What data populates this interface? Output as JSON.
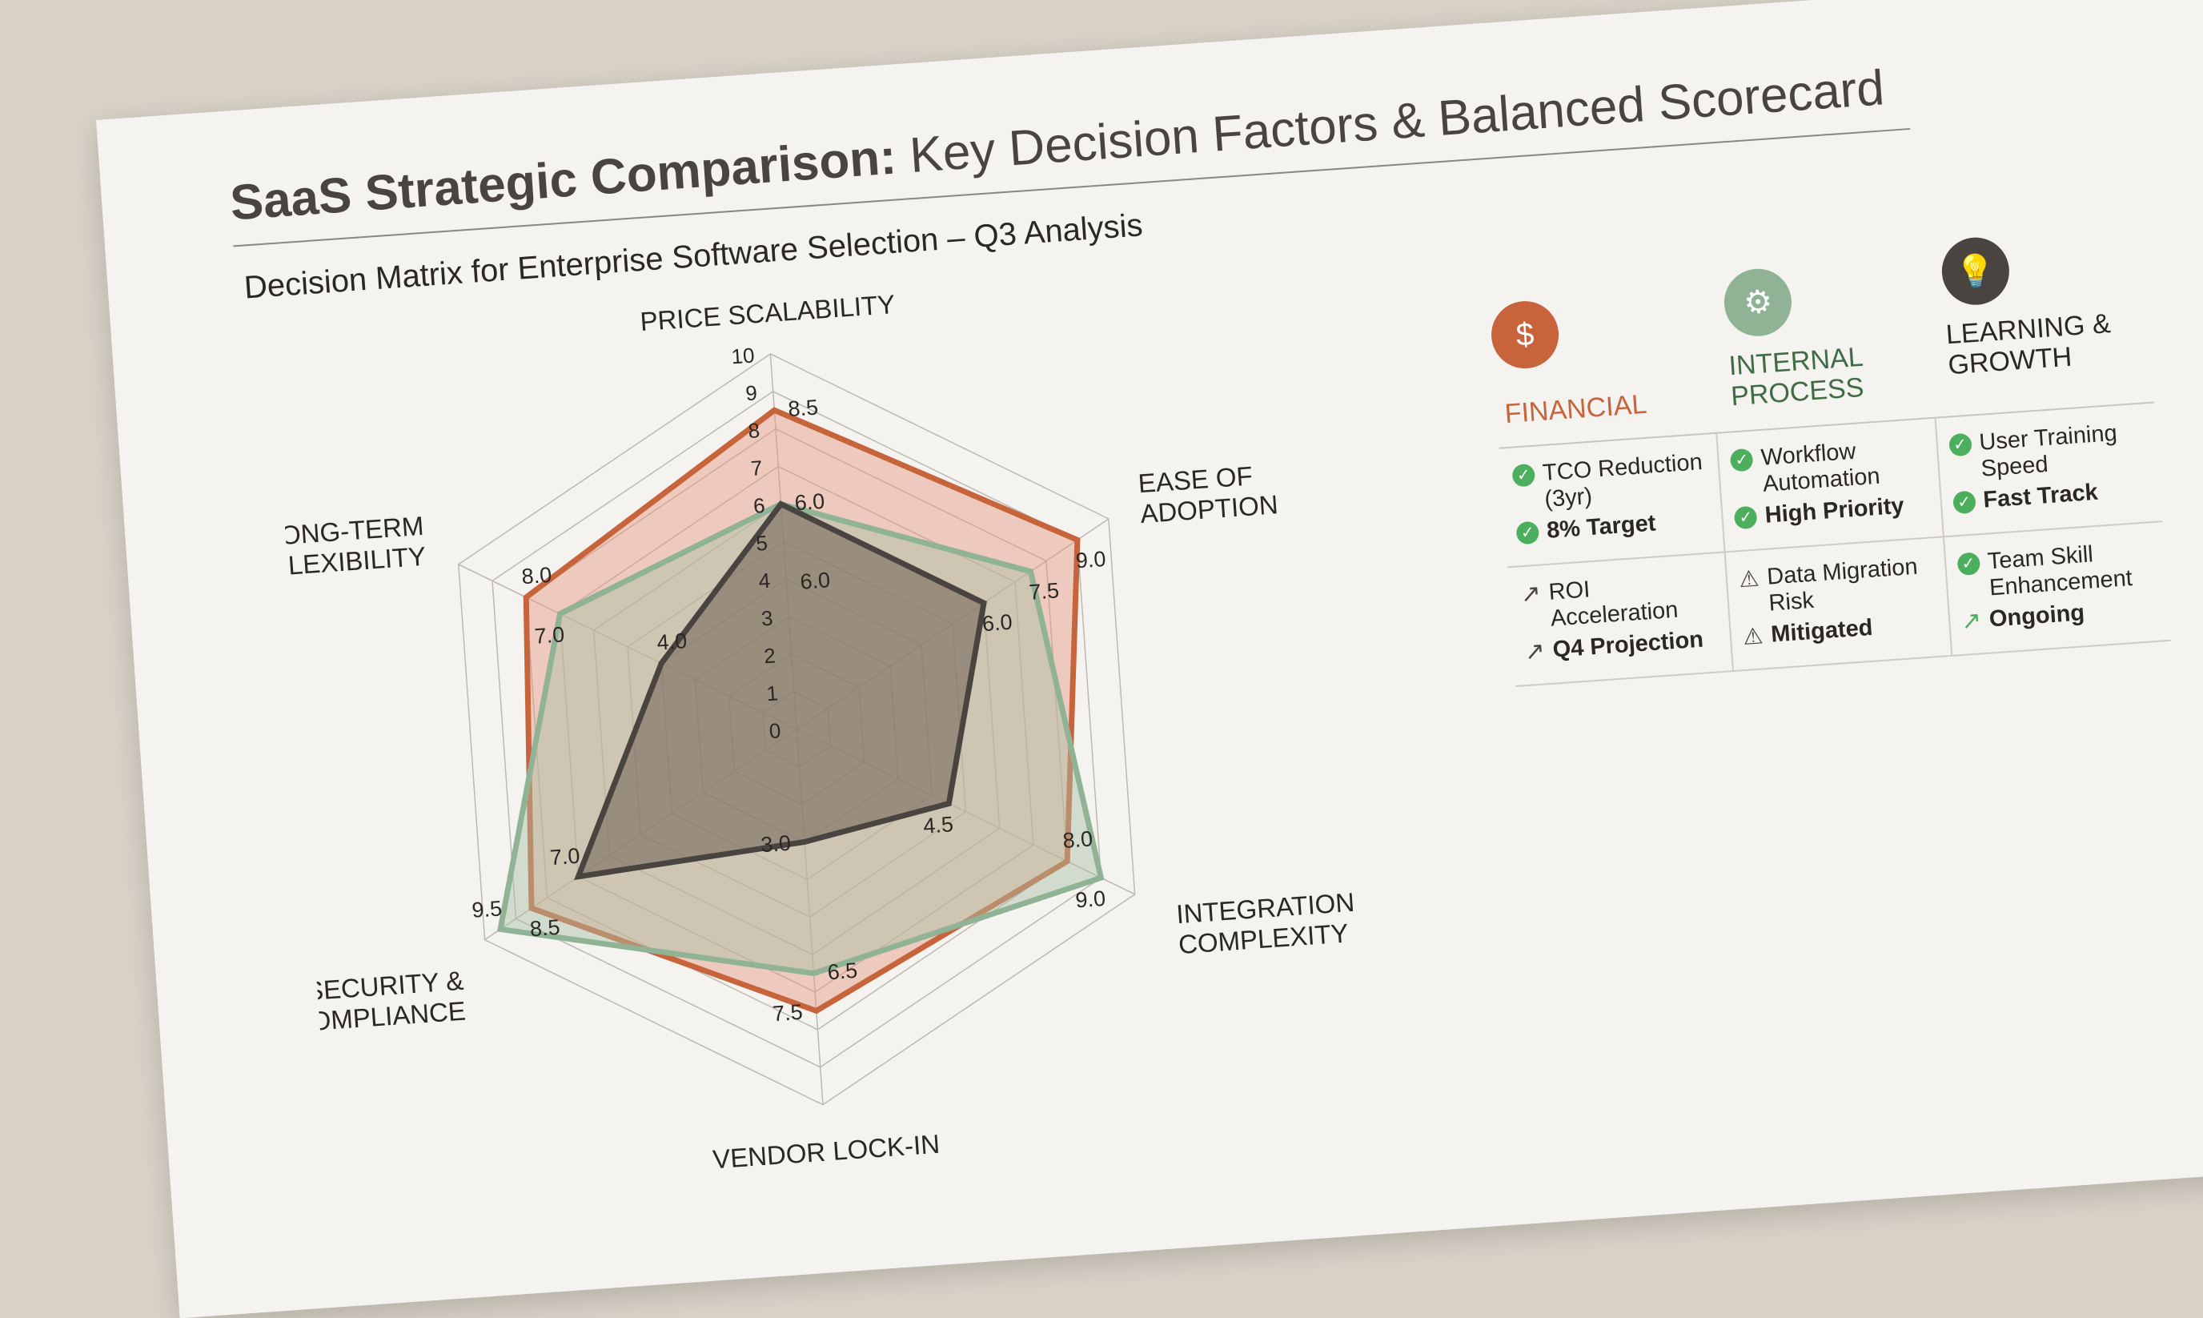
{
  "title_bold": "SaaS Strategic Comparison:",
  "title_rest": " Key Decision Factors & Balanced Scorecard",
  "subtitle": "Decision Matrix for Enterprise Software Selection – Q3 Analysis",
  "chart_data": {
    "type": "radar",
    "axes": [
      "PRICE SCALABILITY",
      "EASE OF ADOPTION",
      "INTEGRATION COMPLEXITY",
      "VENDOR LOCK-IN",
      "SECURITY & COMPLIANCE",
      "LONG-TERM FLEXIBILITY"
    ],
    "range": [
      0,
      10
    ],
    "ticks": [
      "0",
      "1",
      "2",
      "3",
      "4",
      "5",
      "6",
      "7",
      "8",
      "9",
      "10"
    ],
    "series": [
      {
        "values": [
          8.5,
          9.0,
          8.0,
          7.5,
          8.5,
          8.0
        ],
        "labels": [
          "8.5",
          "9.0",
          "8.0",
          "7.5",
          "8.5",
          "8.0"
        ],
        "color": "#c8643c",
        "fill": "#e59a80"
      },
      {
        "values": [
          6.0,
          7.5,
          9.0,
          6.5,
          9.5,
          7.0
        ],
        "labels": [
          "6.0",
          "7.5",
          "9.0",
          "6.5",
          "9.5",
          "7.0"
        ],
        "color": "#8fb394",
        "fill": "#a9c2a6"
      },
      {
        "values": [
          6.0,
          6.0,
          4.5,
          3.0,
          7.0,
          4.0
        ],
        "labels": [
          "6.0",
          "6.0",
          "4.5",
          "3.0",
          "7.0",
          "4.0"
        ],
        "color": "#4a4440",
        "fill": "#6e5f52"
      }
    ],
    "grid": true
  },
  "scorecard": {
    "headers": [
      {
        "label": "FINANCIAL",
        "icon": "coins-dollar-icon",
        "color": "#c8643c"
      },
      {
        "label": "INTERNAL PROCESS",
        "icon": "gear-icon",
        "color": "#8fb394"
      },
      {
        "label": "LEARNING & GROWTH",
        "icon": "lightbulb-icon",
        "color": "#4a4440"
      }
    ],
    "cells": [
      {
        "item": "TCO Reduction (3yr)",
        "status": "8% Target",
        "icon": "check-icon"
      },
      {
        "item": "Workflow Automation",
        "status": "High Priority",
        "icon": "check-icon"
      },
      {
        "item": "User Training Speed",
        "status": "Fast Track",
        "icon": "check-icon"
      },
      {
        "item": "ROI Acceleration",
        "status": "Q4 Projection",
        "icon": "trend-arrow-icon"
      },
      {
        "item": "Data Migration Risk",
        "status": "Mitigated",
        "icon": "warning-icon"
      },
      {
        "item": "Team Skill Enhancement",
        "status": "Ongoing",
        "icon": "check-icon"
      }
    ]
  }
}
